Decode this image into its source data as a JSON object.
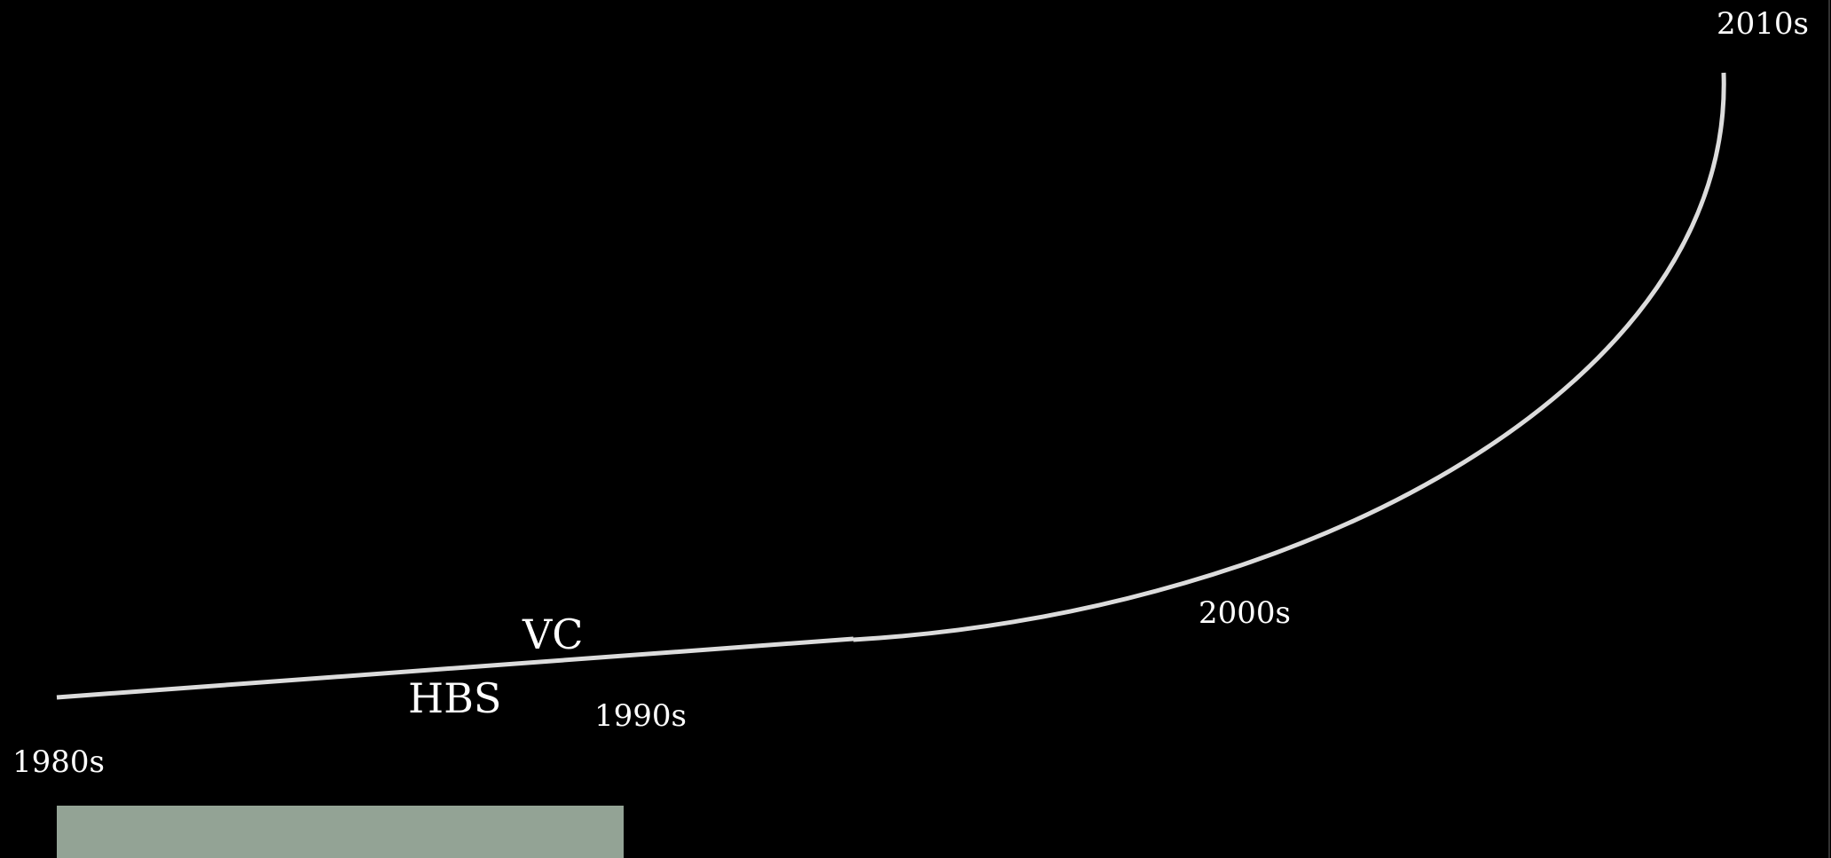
{
  "colors": {
    "background": "#000000",
    "curve": "#dcdcdc",
    "text": "#ffffff",
    "block": "#93a395",
    "edge": "#333333"
  },
  "timeline": {
    "decades": [
      "1980s",
      "1990s",
      "2000s",
      "2010s"
    ],
    "milestones": [
      "VC",
      "HBS"
    ]
  }
}
